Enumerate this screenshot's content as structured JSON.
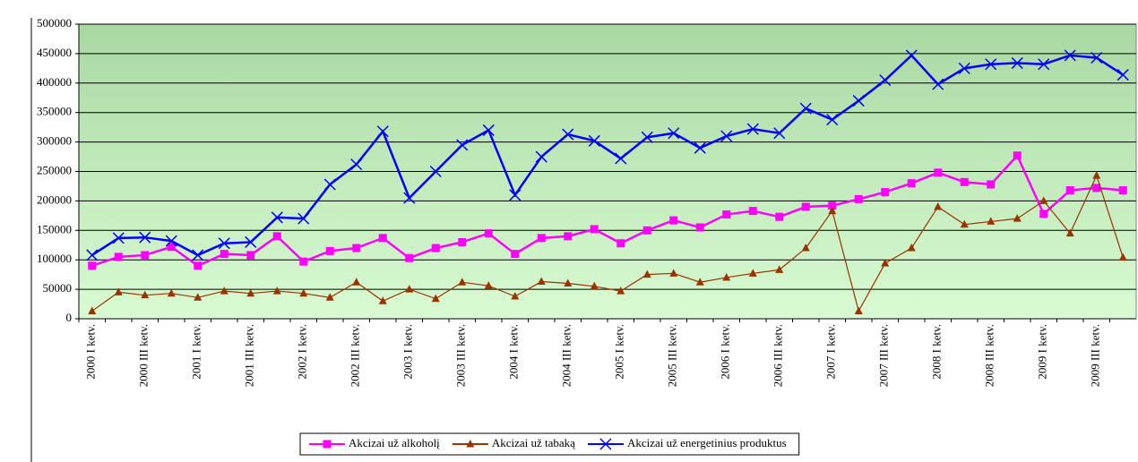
{
  "chart_data": {
    "type": "line",
    "categories": [
      "2000 I ketv.",
      null,
      "2000 III ketv.",
      null,
      "2001 I ketv.",
      null,
      "2001 III ketv.",
      null,
      "2002 I ketv.",
      null,
      "2002 III ketv.",
      null,
      "2003 I ketv.",
      null,
      "2003 III ketv.",
      null,
      "2004 I ketv.",
      null,
      "2004 III ketv.",
      null,
      "2005 I ketv.",
      null,
      "2005 III ketv.",
      null,
      "2006 I ketv.",
      null,
      "2006 III ketv.",
      null,
      "2007 I ketv.",
      null,
      "2007 III ketv.",
      null,
      "2008 I ketv.",
      null,
      "2008 III ketv.",
      null,
      "2009 I ketv.",
      null,
      "2009 III ketv.",
      null
    ],
    "series": [
      {
        "name": "Akcizai už alkoholį",
        "color": "#ff00ff",
        "marker": "square",
        "values": [
          90000,
          105000,
          108000,
          122000,
          90000,
          110000,
          108000,
          140000,
          97000,
          115000,
          120000,
          137000,
          103000,
          120000,
          130000,
          145000,
          110000,
          137000,
          140000,
          152000,
          128000,
          150000,
          167000,
          155000,
          177000,
          183000,
          173000,
          190000,
          192000,
          203000,
          215000,
          230000,
          248000,
          232000,
          228000,
          277000,
          178000,
          218000,
          222000,
          218000
        ]
      },
      {
        "name": "Akcizai už tabaką",
        "color": "#993300",
        "marker": "triangle",
        "values": [
          13000,
          45000,
          40000,
          43000,
          36000,
          47000,
          43000,
          47000,
          43000,
          36000,
          62000,
          30000,
          50000,
          34000,
          62000,
          56000,
          38000,
          63000,
          60000,
          55000,
          47000,
          75000,
          77000,
          62000,
          70000,
          77000,
          83000,
          120000,
          183000,
          13000,
          94000,
          120000,
          190000,
          160000,
          165000,
          170000,
          200000,
          145000,
          243000,
          104000
        ]
      },
      {
        "name": "Akcizai už energetinius produktus",
        "color": "#0000ff",
        "marker": "x",
        "values": [
          108000,
          137000,
          138000,
          132000,
          108000,
          128000,
          130000,
          172000,
          170000,
          228000,
          262000,
          318000,
          205000,
          250000,
          295000,
          320000,
          210000,
          275000,
          313000,
          302000,
          272000,
          308000,
          315000,
          290000,
          310000,
          322000,
          315000,
          357000,
          338000,
          370000,
          405000,
          447000,
          398000,
          425000,
          432000,
          434000,
          432000,
          447000,
          443000,
          414000
        ]
      }
    ],
    "ylim": [
      0,
      500000
    ],
    "yticks": [
      0,
      50000,
      100000,
      150000,
      200000,
      250000,
      300000,
      350000,
      400000,
      450000,
      500000
    ],
    "grid": true,
    "legend": "bottom"
  }
}
